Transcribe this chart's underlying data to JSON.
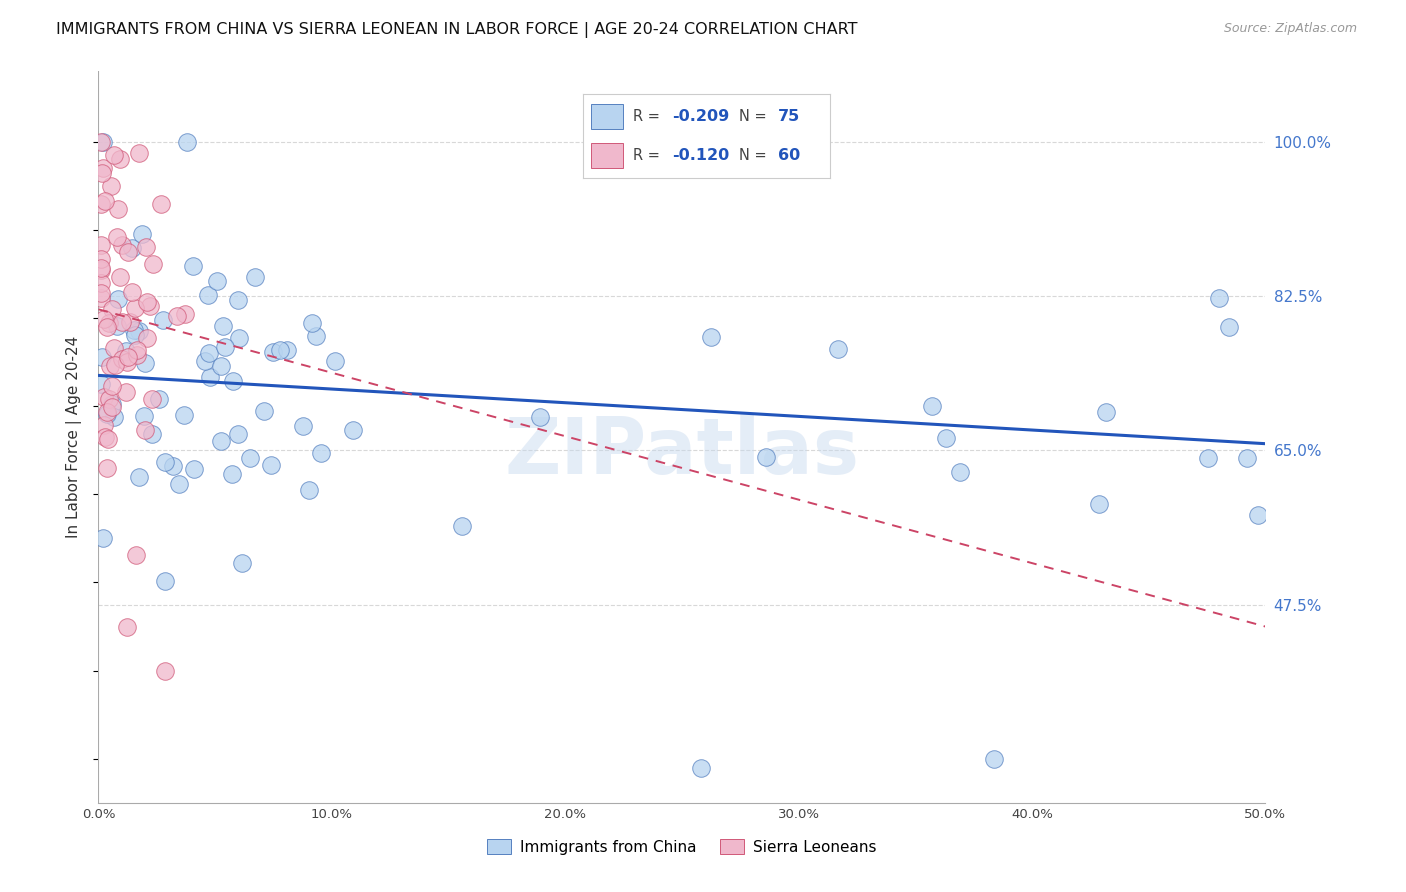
{
  "title": "IMMIGRANTS FROM CHINA VS SIERRA LEONEAN IN LABOR FORCE | AGE 20-24 CORRELATION CHART",
  "source": "Source: ZipAtlas.com",
  "ylabel": "In Labor Force | Age 20-24",
  "ytick_values": [
    0.475,
    0.65,
    0.825,
    1.0
  ],
  "ytick_labels": [
    "47.5%",
    "65.0%",
    "82.5%",
    "100.0%"
  ],
  "xtick_values": [
    0.0,
    0.1,
    0.2,
    0.3,
    0.4,
    0.5
  ],
  "xtick_labels": [
    "0.0%",
    "10.0%",
    "20.0%",
    "30.0%",
    "40.0%",
    "50.0%"
  ],
  "china_color_fill": "#b8d4f0",
  "china_color_edge": "#5580c0",
  "sierra_color_fill": "#f0b8cc",
  "sierra_color_edge": "#d05878",
  "china_line_color": "#2255bb",
  "sierra_line_color": "#cc4466",
  "background_color": "#ffffff",
  "grid_color": "#d8d8d8",
  "legend_R1": "-0.209",
  "legend_N1": "75",
  "legend_R2": "-0.120",
  "legend_N2": "60",
  "legend_label1": "Immigrants from China",
  "legend_label2": "Sierra Leoneans",
  "watermark": "ZIPatlas",
  "xmin": 0.0,
  "xmax": 0.5,
  "ymin": 0.25,
  "ymax": 1.08,
  "china_intercept": 0.735,
  "china_slope": -0.155,
  "sierra_intercept": 0.81,
  "sierra_slope": -0.72
}
